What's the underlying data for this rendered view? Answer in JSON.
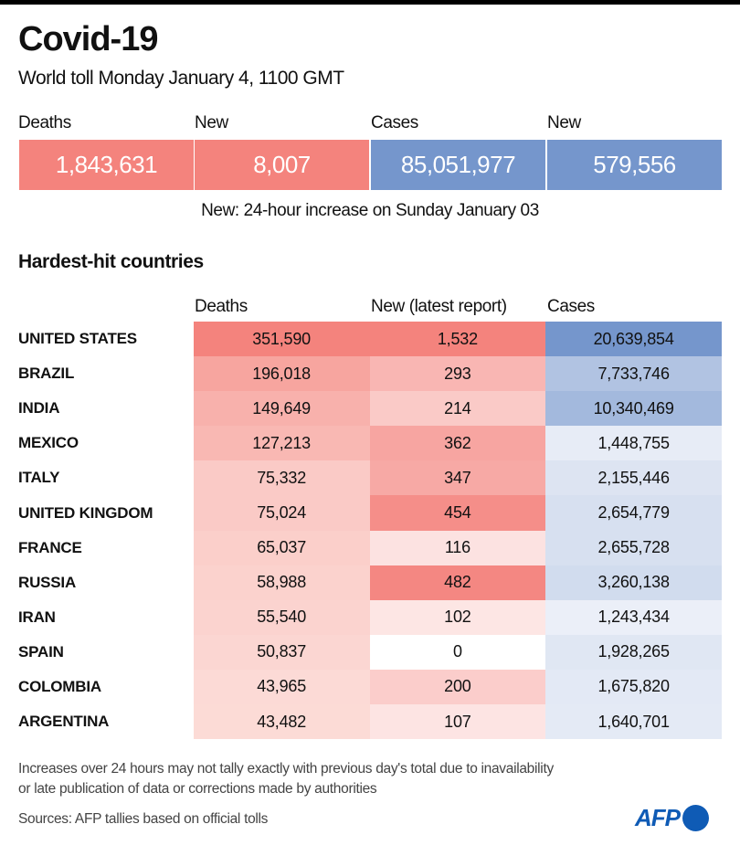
{
  "title": "Covid-19",
  "subtitle": "World toll Monday January 4, 1100 GMT",
  "kpis": [
    {
      "label": "Deaths",
      "value": "1,843,631",
      "color": "#f4837d"
    },
    {
      "label": "New",
      "value": "8,007",
      "color": "#f4837d"
    },
    {
      "label": "Cases",
      "value": "85,051,977",
      "color": "#7596cc"
    },
    {
      "label": "New",
      "value": "579,556",
      "color": "#7596cc"
    }
  ],
  "note": "New: 24-hour increase on Sunday January 03",
  "section_title": "Hardest-hit countries",
  "chart_data": {
    "type": "table",
    "title": "Hardest-hit countries",
    "columns": [
      "Deaths",
      "New (latest report)",
      "Cases"
    ],
    "rows": [
      {
        "country": "UNITED STATES",
        "deaths": "351,590",
        "new": "1,532",
        "cases": "20,639,854"
      },
      {
        "country": "BRAZIL",
        "deaths": "196,018",
        "new": "293",
        "cases": "7,733,746"
      },
      {
        "country": "INDIA",
        "deaths": "149,649",
        "new": "214",
        "cases": "10,340,469"
      },
      {
        "country": "MEXICO",
        "deaths": "127,213",
        "new": "362",
        "cases": "1,448,755"
      },
      {
        "country": "ITALY",
        "deaths": "75,332",
        "new": "347",
        "cases": "2,155,446"
      },
      {
        "country": "UNITED KINGDOM",
        "deaths": "75,024",
        "new": "454",
        "cases": "2,654,779"
      },
      {
        "country": "FRANCE",
        "deaths": "65,037",
        "new": "116",
        "cases": "2,655,728"
      },
      {
        "country": "RUSSIA",
        "deaths": "58,988",
        "new": "482",
        "cases": "3,260,138"
      },
      {
        "country": "IRAN",
        "deaths": "55,540",
        "new": "102",
        "cases": "1,243,434"
      },
      {
        "country": "SPAIN",
        "deaths": "50,837",
        "new": "0",
        "cases": "1,928,265"
      },
      {
        "country": "COLOMBIA",
        "deaths": "43,965",
        "new": "200",
        "cases": "1,675,820"
      },
      {
        "country": "ARGENTINA",
        "deaths": "43,482",
        "new": "107",
        "cases": "1,640,701"
      }
    ],
    "colors": {
      "red": "#f4837d",
      "blue": "#7596cc"
    }
  },
  "footnote": [
    "Increases over 24 hours may not tally exactly with previous day's total due to inavailability",
    "or late publication of data or corrections made by authorities"
  ],
  "sources": "Sources: AFP tallies based on official tolls",
  "logo": "AFP"
}
